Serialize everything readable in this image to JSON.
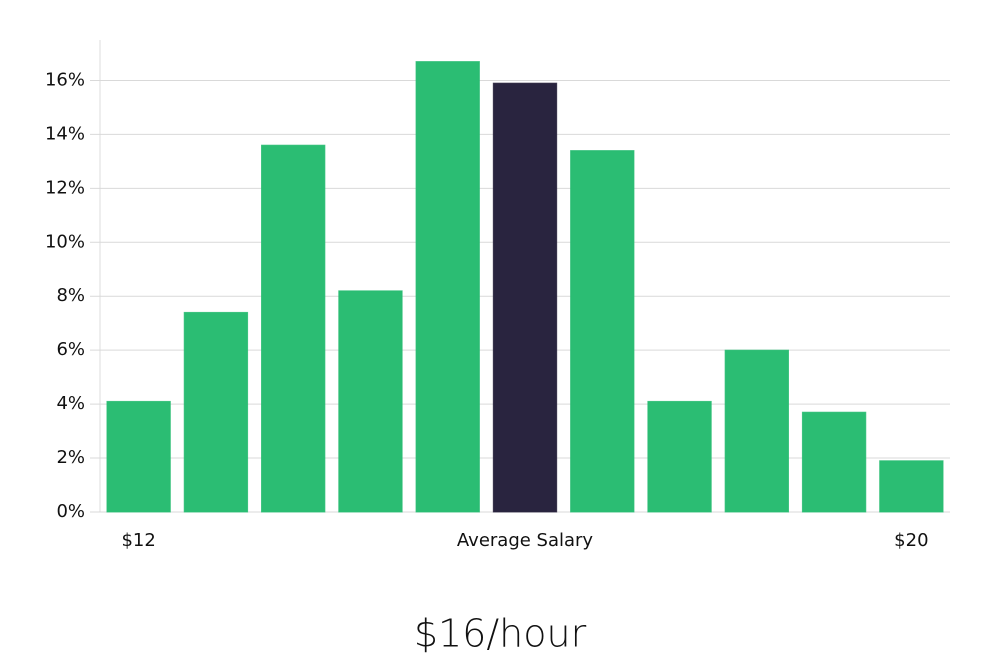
{
  "chart_data": {
    "type": "bar",
    "categories": [
      "$12",
      null,
      null,
      null,
      null,
      "Average Salary",
      null,
      null,
      null,
      null,
      "$20"
    ],
    "values": [
      4.1,
      7.4,
      13.6,
      8.2,
      16.7,
      15.9,
      13.4,
      4.1,
      6.0,
      3.7,
      1.9
    ],
    "colors": [
      "#2bbd73",
      "#2bbd73",
      "#2bbd73",
      "#2bbd73",
      "#2bbd73",
      "#29243f",
      "#2bbd73",
      "#2bbd73",
      "#2bbd73",
      "#2bbd73",
      "#2bbd73"
    ],
    "ylim": [
      0,
      17.5
    ],
    "yticks": [
      {
        "value": 0,
        "label": "0%"
      },
      {
        "value": 2,
        "label": "2%"
      },
      {
        "value": 4,
        "label": "4%"
      },
      {
        "value": 6,
        "label": "6%"
      },
      {
        "value": 8,
        "label": "8%"
      },
      {
        "value": 10,
        "label": "10%"
      },
      {
        "value": 12,
        "label": "12%"
      },
      {
        "value": 14,
        "label": "14%"
      },
      {
        "value": 16,
        "label": "16%"
      }
    ],
    "grid": true,
    "caption": "$16/hour"
  }
}
